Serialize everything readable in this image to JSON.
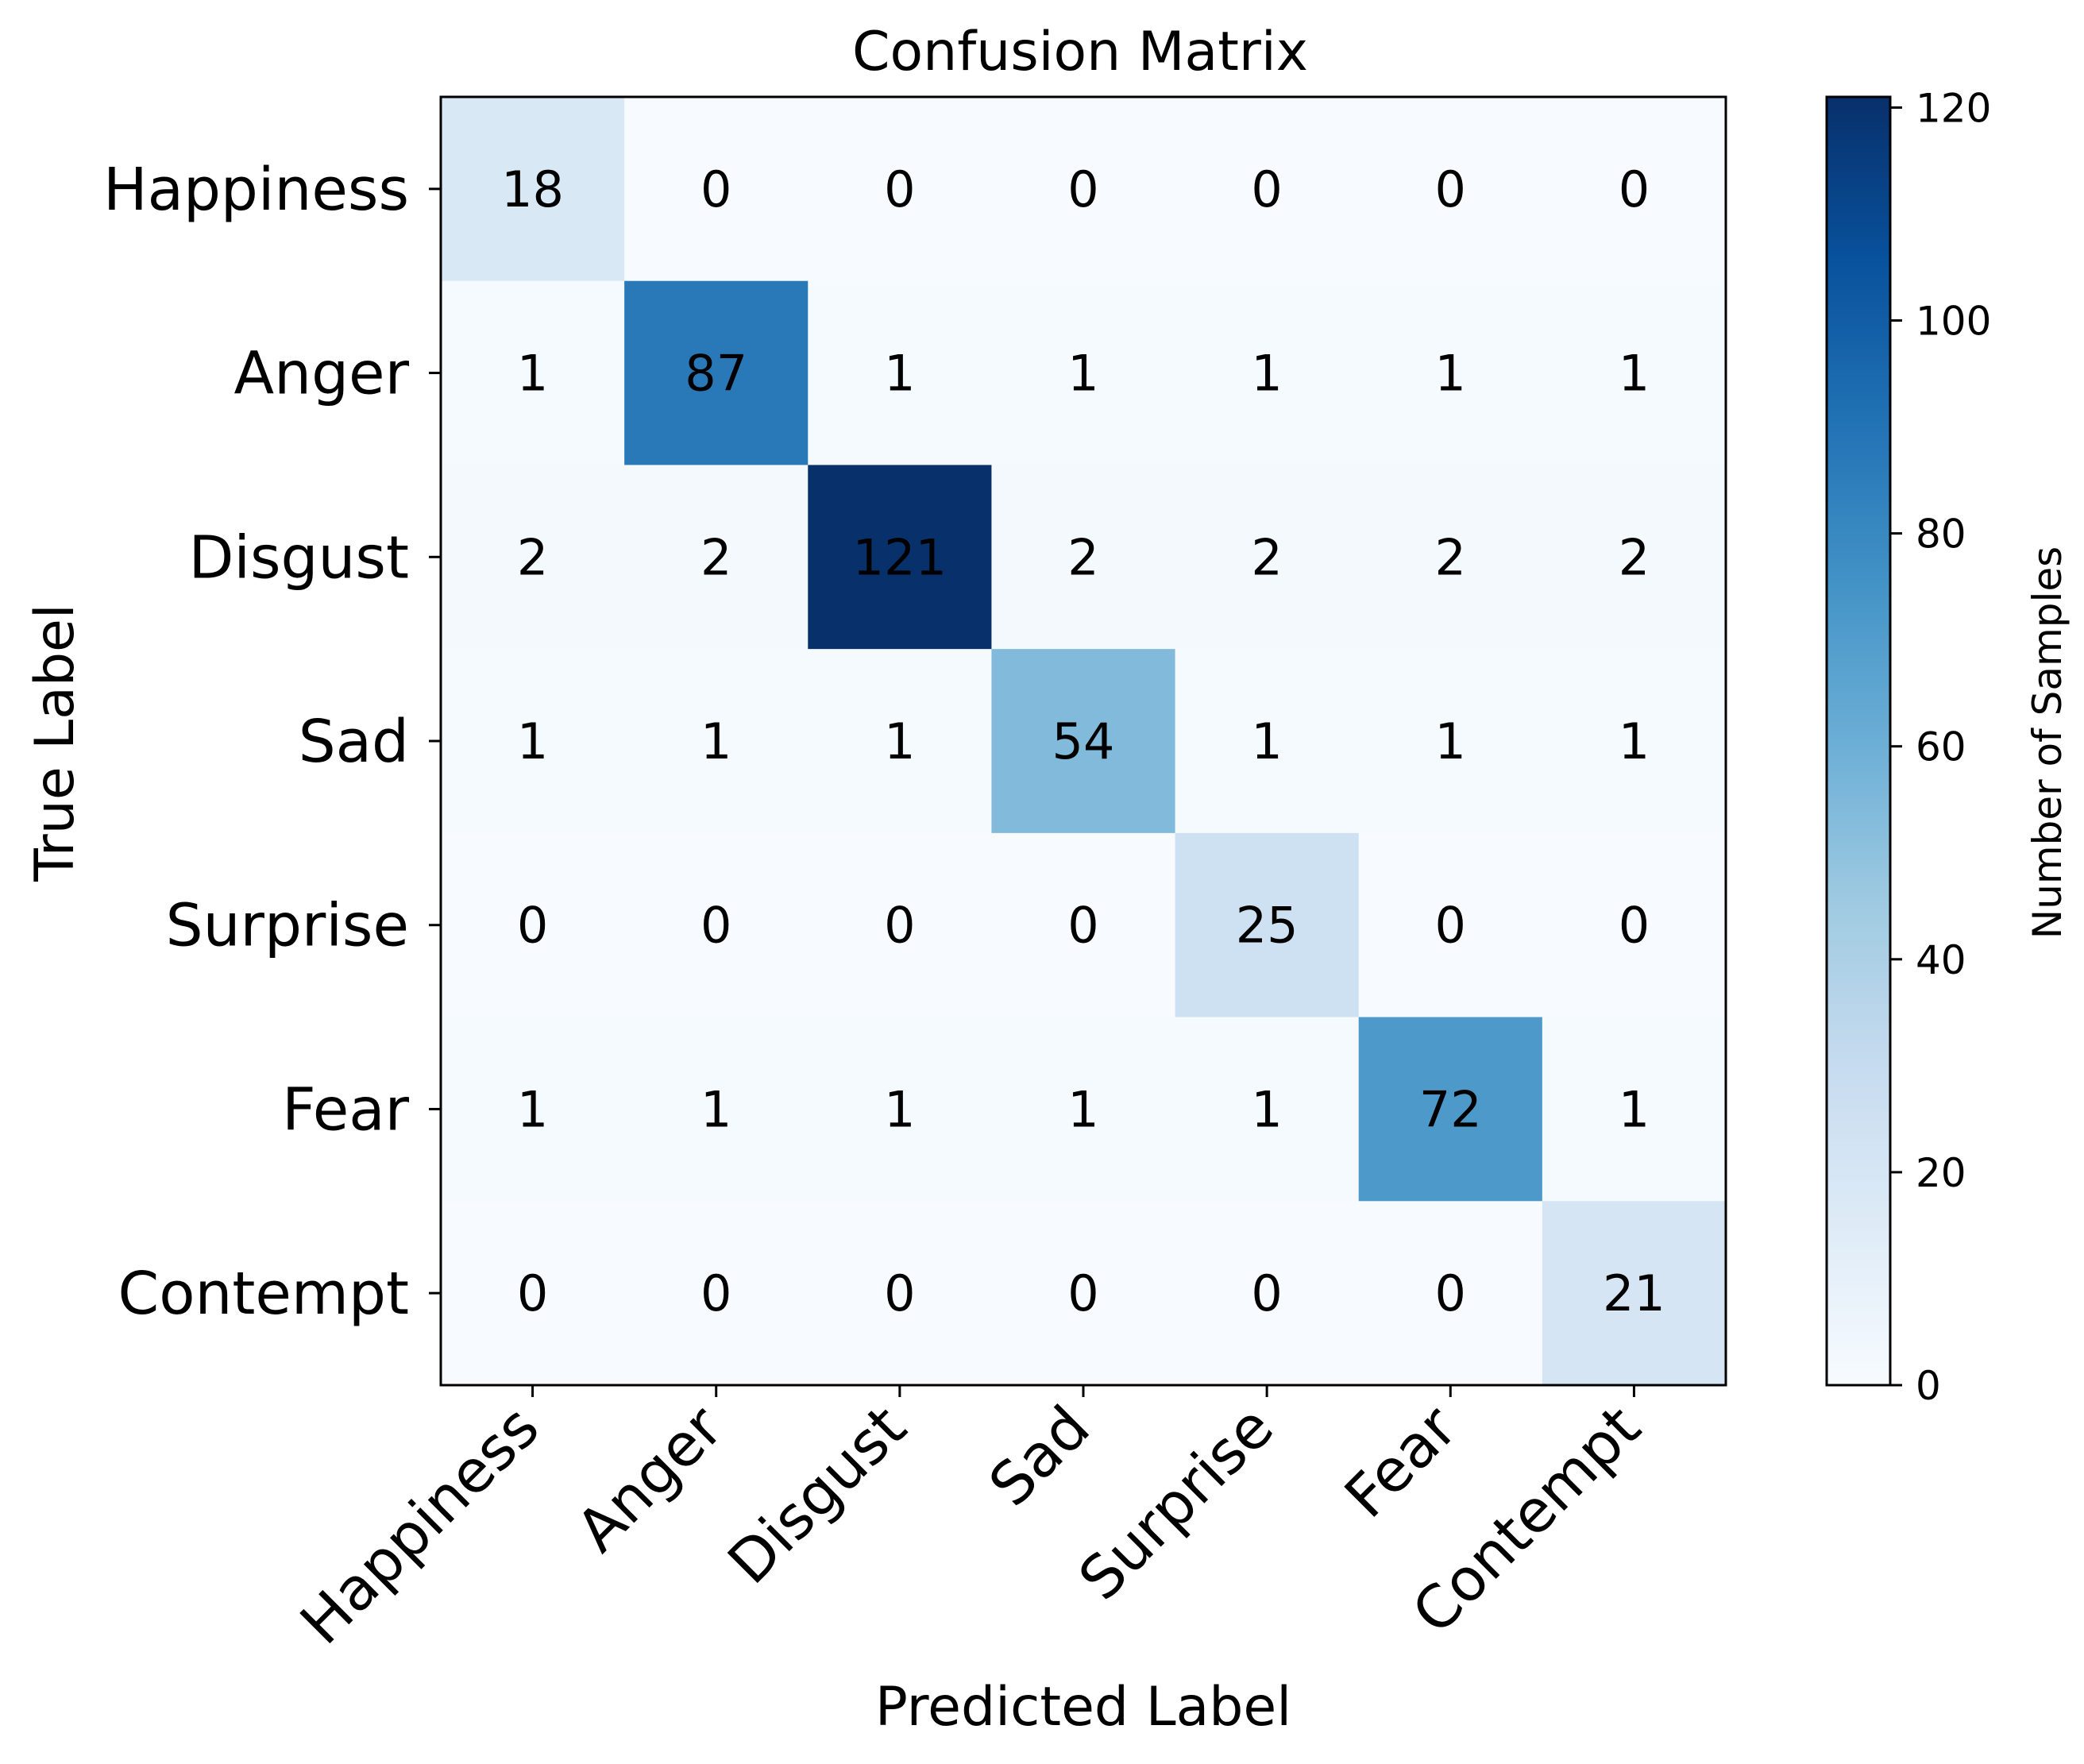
{
  "chart_data": {
    "type": "heatmap",
    "title": "Confusion Matrix",
    "xlabel": "Predicted Label",
    "ylabel": "True Label",
    "x_categories": [
      "Happiness",
      "Anger",
      "Disgust",
      "Sad",
      "Surprise",
      "Fear",
      "Contempt"
    ],
    "y_categories": [
      "Happiness",
      "Anger",
      "Disgust",
      "Sad",
      "Surprise",
      "Fear",
      "Contempt"
    ],
    "values": [
      [
        18,
        0,
        0,
        0,
        0,
        0,
        0
      ],
      [
        1,
        87,
        1,
        1,
        1,
        1,
        1
      ],
      [
        2,
        2,
        121,
        2,
        2,
        2,
        2
      ],
      [
        1,
        1,
        1,
        54,
        1,
        1,
        1
      ],
      [
        0,
        0,
        0,
        0,
        25,
        0,
        0
      ],
      [
        1,
        1,
        1,
        1,
        1,
        72,
        1
      ],
      [
        0,
        0,
        0,
        0,
        0,
        0,
        21
      ]
    ],
    "colormap": "Blues",
    "colorbar": {
      "label": "Number of Samples",
      "range": [
        0,
        121
      ],
      "ticks": [
        0,
        20,
        40,
        60,
        80,
        100,
        120
      ]
    }
  }
}
